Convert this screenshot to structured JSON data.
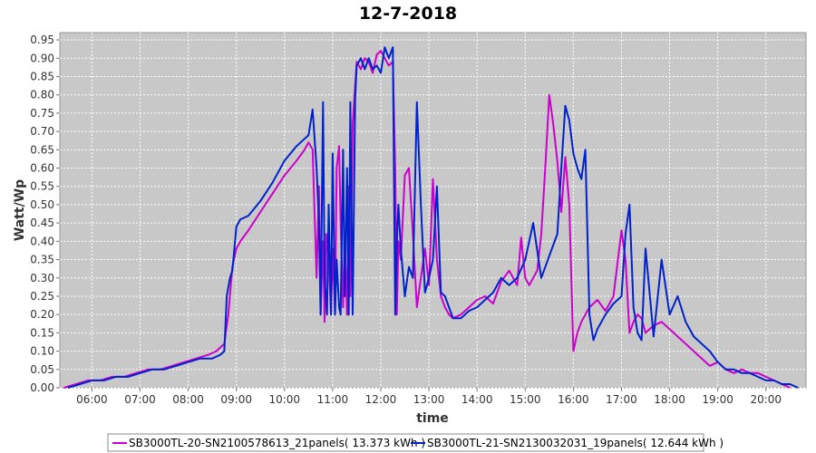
{
  "chart_data": {
    "type": "line",
    "title": "12-7-2018",
    "xlabel": "time",
    "ylabel": "Watt/Wp",
    "xlim": [
      "05:20",
      "20:50"
    ],
    "ylim": [
      0,
      0.97
    ],
    "x_ticks": [
      "06:00",
      "07:00",
      "08:00",
      "09:00",
      "10:00",
      "11:00",
      "12:00",
      "13:00",
      "14:00",
      "15:00",
      "16:00",
      "17:00",
      "18:00",
      "19:00",
      "20:00"
    ],
    "y_ticks": [
      "0.00",
      "0.05",
      "0.10",
      "0.15",
      "0.20",
      "0.25",
      "0.30",
      "0.35",
      "0.40",
      "0.45",
      "0.50",
      "0.55",
      "0.60",
      "0.65",
      "0.70",
      "0.75",
      "0.80",
      "0.85",
      "0.90",
      "0.95"
    ],
    "grid": true,
    "legend_position": "bottom",
    "background_color": "#c8c8c8",
    "series": [
      {
        "name": "SB3000TL-20-SN2100578613_21panels( 13.373 kWh )",
        "color": "#cc00cc",
        "x": [
          "05:25",
          "05:40",
          "05:55",
          "06:10",
          "06:25",
          "06:40",
          "06:55",
          "07:10",
          "07:25",
          "07:40",
          "07:55",
          "08:10",
          "08:25",
          "08:35",
          "08:45",
          "08:50",
          "08:55",
          "09:00",
          "09:05",
          "09:15",
          "09:30",
          "09:45",
          "10:00",
          "10:15",
          "10:25",
          "10:30",
          "10:35",
          "10:40",
          "10:43",
          "10:45",
          "10:48",
          "10:50",
          "10:52",
          "10:55",
          "10:58",
          "11:00",
          "11:03",
          "11:05",
          "11:08",
          "11:10",
          "11:13",
          "11:15",
          "11:18",
          "11:20",
          "11:22",
          "11:25",
          "11:30",
          "11:35",
          "11:40",
          "11:45",
          "11:50",
          "11:55",
          "12:00",
          "12:05",
          "12:10",
          "12:15",
          "12:18",
          "12:20",
          "12:22",
          "12:25",
          "12:30",
          "12:35",
          "12:40",
          "12:45",
          "12:50",
          "12:55",
          "13:00",
          "13:05",
          "13:10",
          "13:15",
          "13:20",
          "13:25",
          "13:30",
          "13:40",
          "13:50",
          "14:00",
          "14:10",
          "14:20",
          "14:30",
          "14:40",
          "14:50",
          "14:55",
          "15:00",
          "15:05",
          "15:10",
          "15:15",
          "15:20",
          "15:25",
          "15:30",
          "15:35",
          "15:40",
          "15:45",
          "15:50",
          "15:55",
          "16:00",
          "16:05",
          "16:10",
          "16:15",
          "16:20",
          "16:30",
          "16:40",
          "16:50",
          "17:00",
          "17:05",
          "17:10",
          "17:15",
          "17:20",
          "17:25",
          "17:30",
          "17:40",
          "17:50",
          "18:00",
          "18:10",
          "18:20",
          "18:30",
          "18:40",
          "18:50",
          "19:00",
          "19:10",
          "19:20",
          "19:30",
          "19:40",
          "19:50",
          "20:00",
          "20:10",
          "20:20",
          "20:30"
        ],
        "y": [
          0.0,
          0.01,
          0.02,
          0.02,
          0.03,
          0.03,
          0.04,
          0.05,
          0.05,
          0.06,
          0.07,
          0.08,
          0.09,
          0.1,
          0.12,
          0.2,
          0.33,
          0.38,
          0.4,
          0.43,
          0.48,
          0.53,
          0.58,
          0.62,
          0.65,
          0.67,
          0.65,
          0.3,
          0.55,
          0.2,
          0.4,
          0.18,
          0.42,
          0.35,
          0.2,
          0.38,
          0.2,
          0.6,
          0.66,
          0.45,
          0.22,
          0.4,
          0.2,
          0.55,
          0.25,
          0.72,
          0.89,
          0.87,
          0.9,
          0.89,
          0.86,
          0.91,
          0.92,
          0.9,
          0.88,
          0.89,
          0.6,
          0.2,
          0.4,
          0.35,
          0.58,
          0.6,
          0.42,
          0.22,
          0.3,
          0.38,
          0.28,
          0.57,
          0.35,
          0.25,
          0.22,
          0.2,
          0.19,
          0.2,
          0.22,
          0.24,
          0.25,
          0.23,
          0.29,
          0.32,
          0.28,
          0.41,
          0.3,
          0.28,
          0.3,
          0.32,
          0.42,
          0.6,
          0.8,
          0.72,
          0.62,
          0.48,
          0.63,
          0.5,
          0.1,
          0.15,
          0.18,
          0.2,
          0.22,
          0.24,
          0.21,
          0.25,
          0.43,
          0.35,
          0.15,
          0.18,
          0.2,
          0.19,
          0.15,
          0.17,
          0.18,
          0.16,
          0.14,
          0.12,
          0.1,
          0.08,
          0.06,
          0.07,
          0.05,
          0.04,
          0.05,
          0.04,
          0.04,
          0.03,
          0.02,
          0.01,
          0.0
        ]
      },
      {
        "name": "SB3000TL-21-SN2130032031_19panels( 12.644 kWh )",
        "color": "#0022cc",
        "x": [
          "05:30",
          "05:45",
          "06:00",
          "06:15",
          "06:30",
          "06:45",
          "07:00",
          "07:15",
          "07:30",
          "07:45",
          "08:00",
          "08:15",
          "08:30",
          "08:40",
          "08:45",
          "08:48",
          "08:52",
          "08:55",
          "09:00",
          "09:05",
          "09:15",
          "09:30",
          "09:45",
          "10:00",
          "10:15",
          "10:25",
          "10:30",
          "10:35",
          "10:40",
          "10:43",
          "10:45",
          "10:48",
          "10:50",
          "10:53",
          "10:55",
          "10:58",
          "11:00",
          "11:03",
          "11:05",
          "11:08",
          "11:10",
          "11:13",
          "11:15",
          "11:18",
          "11:20",
          "11:22",
          "11:25",
          "11:28",
          "11:30",
          "11:35",
          "11:40",
          "11:45",
          "11:50",
          "11:55",
          "12:00",
          "12:05",
          "12:10",
          "12:15",
          "12:18",
          "12:20",
          "12:22",
          "12:25",
          "12:30",
          "12:35",
          "12:40",
          "12:45",
          "12:50",
          "12:55",
          "13:00",
          "13:05",
          "13:10",
          "13:15",
          "13:20",
          "13:25",
          "13:30",
          "13:40",
          "13:50",
          "14:00",
          "14:10",
          "14:20",
          "14:30",
          "14:40",
          "14:50",
          "15:00",
          "15:10",
          "15:20",
          "15:30",
          "15:40",
          "15:45",
          "15:50",
          "15:55",
          "16:00",
          "16:05",
          "16:10",
          "16:15",
          "16:20",
          "16:25",
          "16:30",
          "16:40",
          "16:50",
          "17:00",
          "17:05",
          "17:10",
          "17:15",
          "17:20",
          "17:25",
          "17:30",
          "17:40",
          "17:50",
          "18:00",
          "18:10",
          "18:20",
          "18:30",
          "18:40",
          "18:50",
          "19:00",
          "19:10",
          "19:20",
          "19:30",
          "19:40",
          "19:50",
          "20:00",
          "20:10",
          "20:20",
          "20:30",
          "20:40"
        ],
        "y": [
          0.0,
          0.01,
          0.02,
          0.02,
          0.03,
          0.03,
          0.04,
          0.05,
          0.05,
          0.06,
          0.07,
          0.08,
          0.08,
          0.09,
          0.1,
          0.25,
          0.3,
          0.32,
          0.44,
          0.46,
          0.47,
          0.51,
          0.56,
          0.62,
          0.66,
          0.68,
          0.69,
          0.76,
          0.6,
          0.45,
          0.2,
          0.78,
          0.3,
          0.2,
          0.5,
          0.2,
          0.64,
          0.2,
          0.35,
          0.22,
          0.2,
          0.65,
          0.25,
          0.6,
          0.2,
          0.78,
          0.2,
          0.79,
          0.88,
          0.9,
          0.87,
          0.9,
          0.87,
          0.88,
          0.86,
          0.93,
          0.9,
          0.93,
          0.2,
          0.4,
          0.5,
          0.38,
          0.25,
          0.33,
          0.3,
          0.78,
          0.5,
          0.26,
          0.3,
          0.35,
          0.55,
          0.26,
          0.25,
          0.22,
          0.19,
          0.19,
          0.21,
          0.22,
          0.24,
          0.26,
          0.3,
          0.28,
          0.3,
          0.35,
          0.45,
          0.3,
          0.36,
          0.42,
          0.6,
          0.77,
          0.73,
          0.64,
          0.6,
          0.57,
          0.65,
          0.2,
          0.13,
          0.16,
          0.2,
          0.23,
          0.25,
          0.42,
          0.5,
          0.22,
          0.15,
          0.13,
          0.38,
          0.14,
          0.35,
          0.2,
          0.25,
          0.18,
          0.14,
          0.12,
          0.1,
          0.07,
          0.05,
          0.05,
          0.04,
          0.04,
          0.03,
          0.02,
          0.02,
          0.01,
          0.01,
          0.0
        ]
      }
    ]
  }
}
